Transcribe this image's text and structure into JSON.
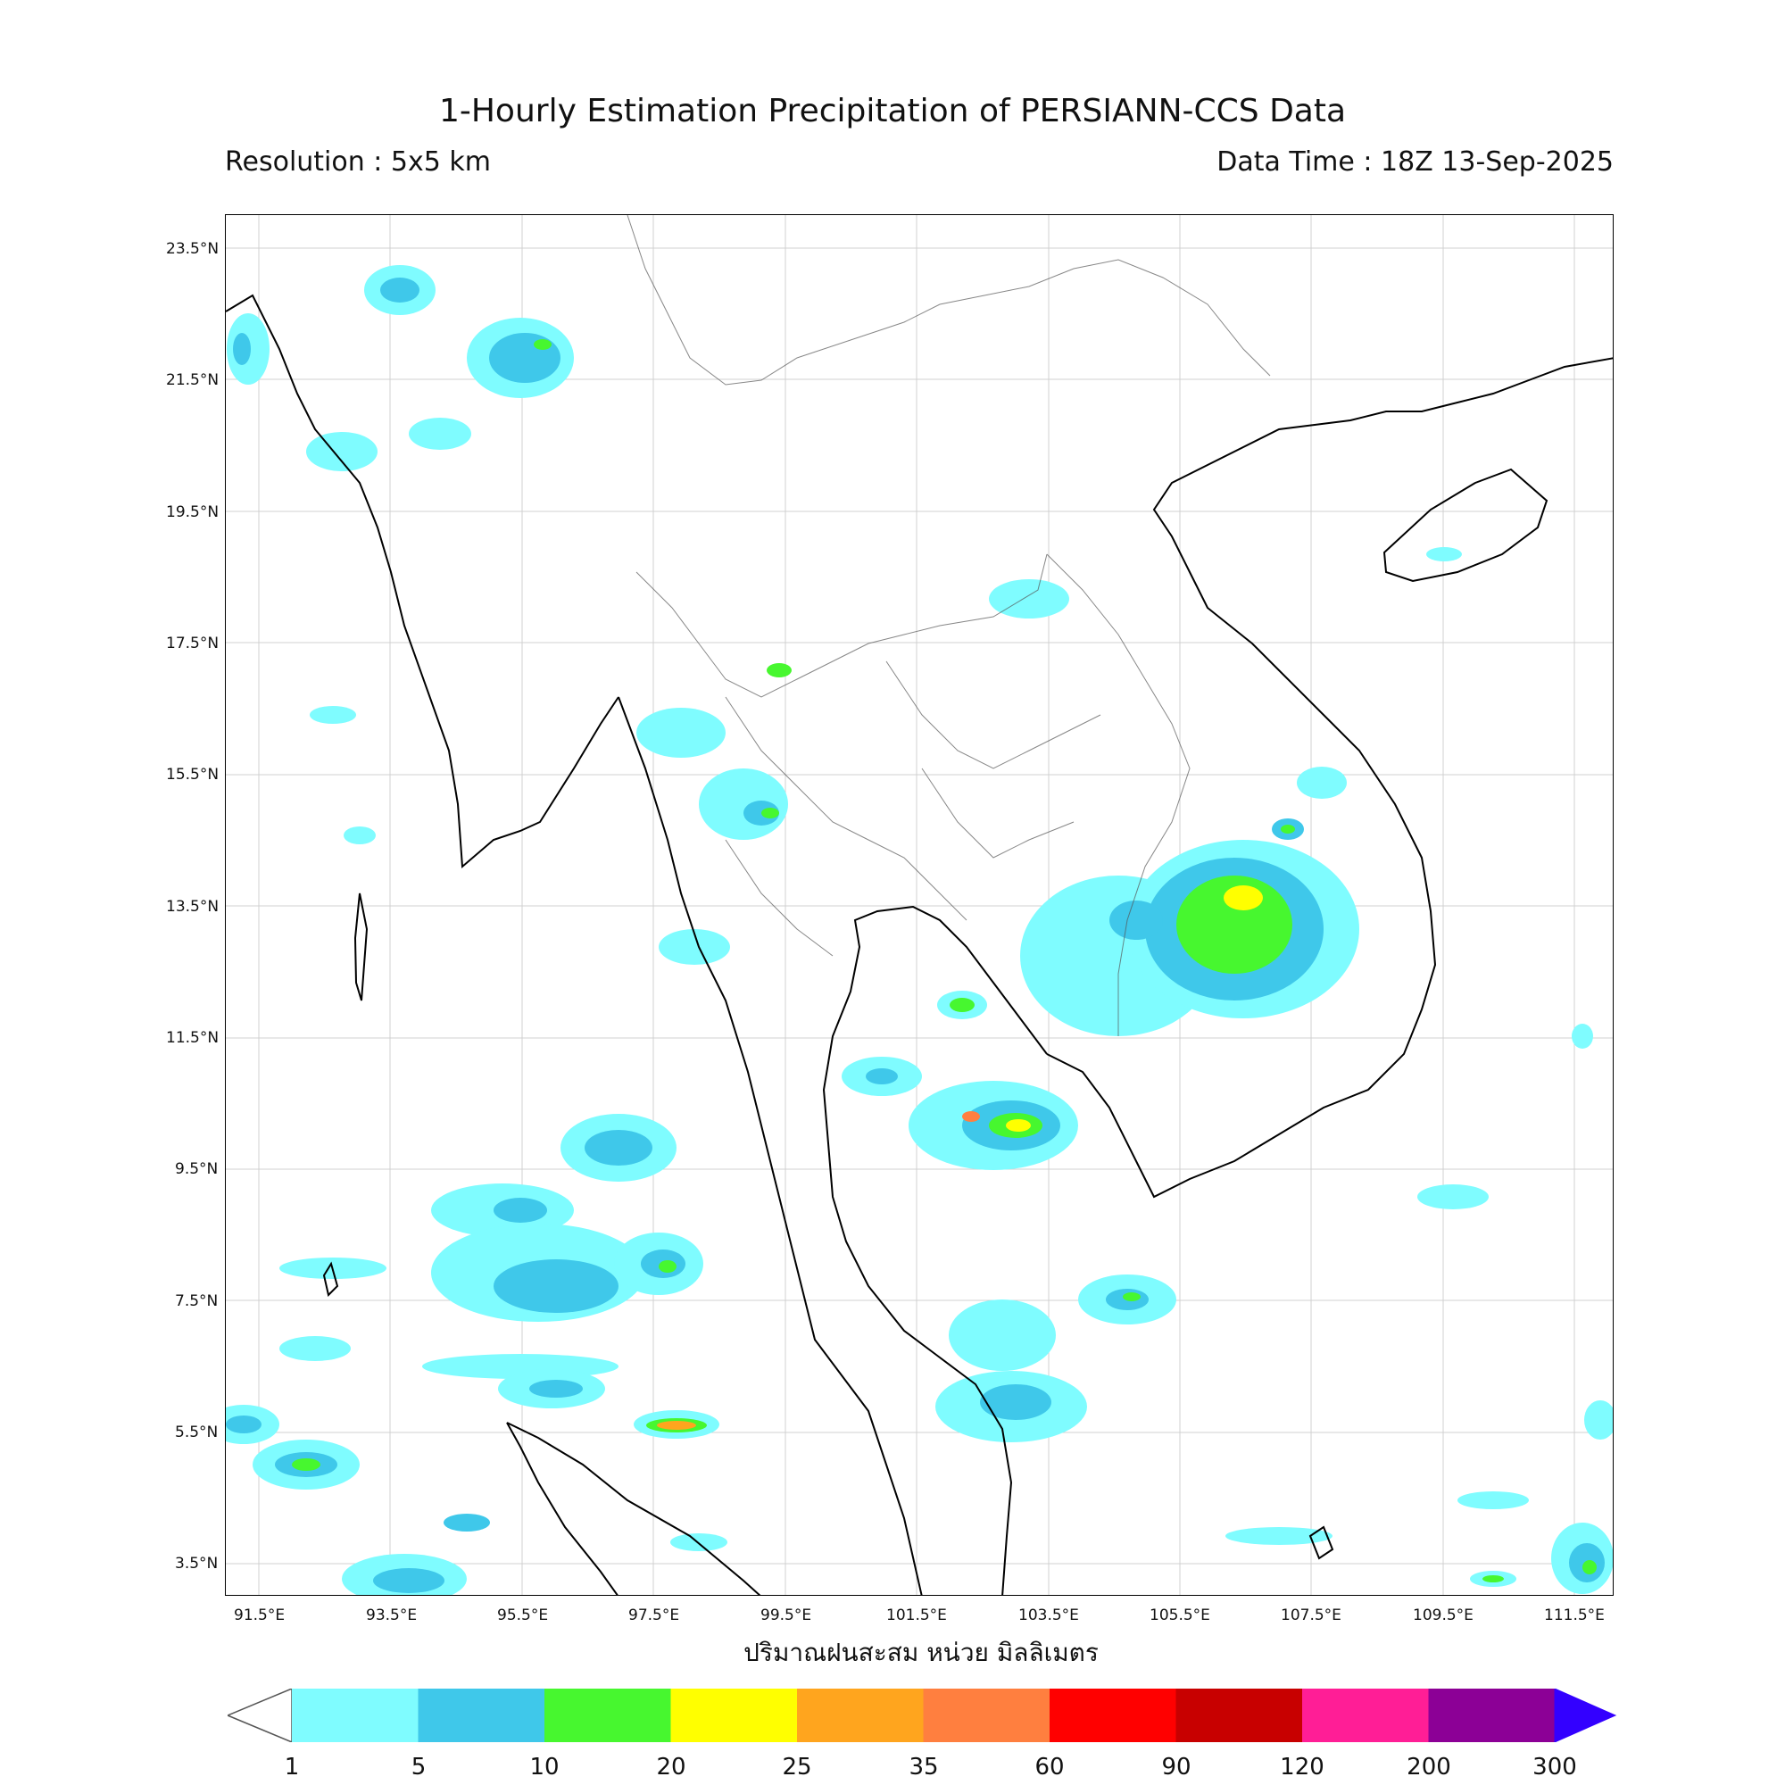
{
  "header": {
    "title": "1-Hourly Estimation Precipitation of PERSIANN-CCS Data",
    "resolution": "Resolution : 5x5 km",
    "data_time": "Data Time : 18Z 13-Sep-2025"
  },
  "axes": {
    "lat_labels": [
      "23.5°N",
      "21.5°N",
      "19.5°N",
      "17.5°N",
      "15.5°N",
      "13.5°N",
      "11.5°N",
      "9.5°N",
      "7.5°N",
      "5.5°N",
      "3.5°N"
    ],
    "lon_labels": [
      "91.5°E",
      "93.5°E",
      "95.5°E",
      "97.5°E",
      "99.5°E",
      "101.5°E",
      "103.5°E",
      "105.5°E",
      "107.5°E",
      "109.5°E",
      "111.5°E"
    ],
    "unit_label": "ปริมาณฝนสะสม หน่วย มิลลิเมตร"
  },
  "colorbar": {
    "ticks": [
      "1",
      "5",
      "10",
      "20",
      "25",
      "35",
      "60",
      "90",
      "120",
      "200",
      "300"
    ],
    "colors": [
      "#7ffcff",
      "#3fc8ea",
      "#47f72f",
      "#ffff00",
      "#ffa51e",
      "#ff7f3f",
      "#ff0000",
      "#c80000",
      "#ff1e96",
      "#8c0096",
      "#3300ff"
    ]
  },
  "rain_cells": [
    {
      "name": "gulf-thailand-cell",
      "lon": 102.6,
      "lat": 9.8,
      "level": 3
    },
    {
      "name": "cambodia-cell",
      "lon": 106.3,
      "lat": 13.4,
      "level": 3
    },
    {
      "name": "andaman-cell",
      "lon": 96.0,
      "lat": 8.0,
      "level": 2
    },
    {
      "name": "myanmar-cell",
      "lon": 96.0,
      "lat": 22.0,
      "level": 2
    },
    {
      "name": "strait-cell",
      "lon": 97.5,
      "lat": 5.4,
      "level": 5
    }
  ]
}
